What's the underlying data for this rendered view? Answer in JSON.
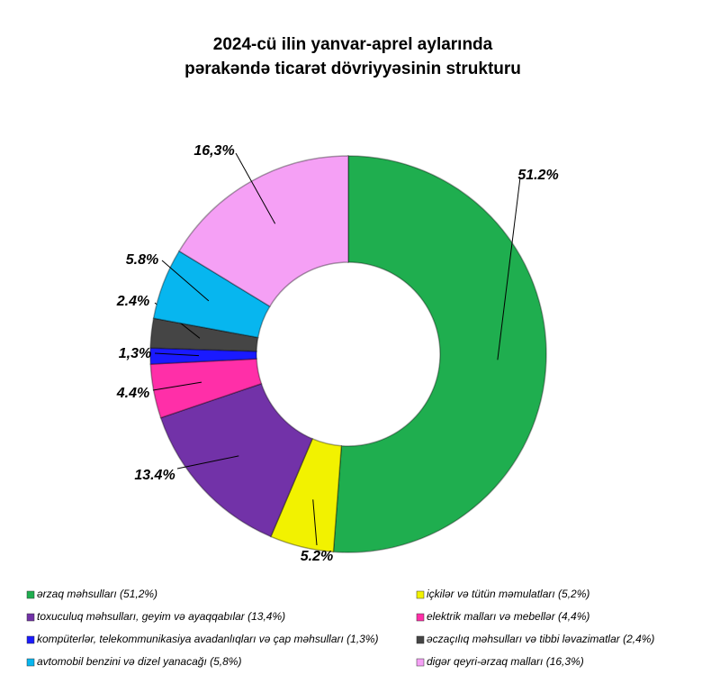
{
  "chart_data": {
    "type": "donut",
    "title": [
      "2024-cü ilin yanvar-aprel aylarında",
      "pərakəndə ticarət dövriyyəsinin strukturu"
    ],
    "categories": [
      "ərzaq məhsulları  (51,2%)",
      "içkilər və tütün məmulatları   (5,2%)",
      "toxuculuq məhsulları,  geyim və ayaqqabılar (13,4%)",
      "elektrik malları  və mebellər  (4,4%)",
      "kompüterlər,  telekommunikasiya  avadanlıqları  və  çap məhsulları  (1,3%)",
      "əczaçılıq  məhsulları  və  tibbi ləvazimatlar  (2,4%)",
      "avtomobil  benzini  və dizel yanacağı  (5,8%)",
      "digər qeyri-ərzaq  malları  (16,3%)"
    ],
    "values": [
      51.2,
      5.2,
      13.4,
      4.4,
      1.3,
      2.4,
      5.8,
      16.3
    ],
    "value_labels": [
      "51.2%",
      "5.2%",
      "13.4%",
      "4.4%",
      "1,3%",
      "2.4%",
      "5.8%",
      "16,3%"
    ],
    "colors": [
      "#1fae4f",
      "#f2f200",
      "#7232a8",
      "#ff2fa8",
      "#1a1aff",
      "#454545",
      "#07b6ef",
      "#f5a0f5"
    ]
  }
}
